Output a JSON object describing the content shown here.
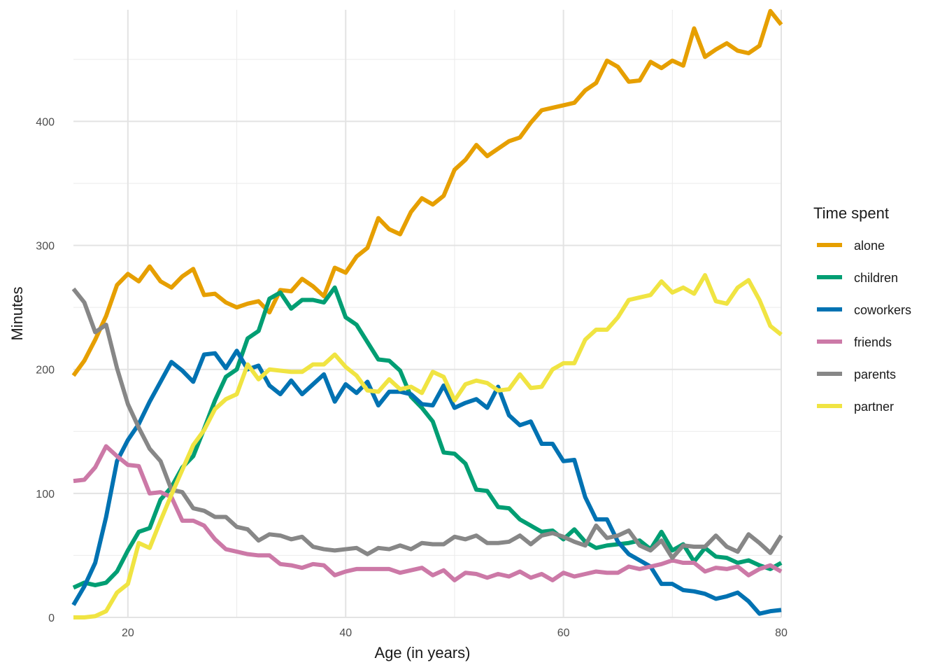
{
  "chart_data": {
    "type": "line",
    "title": "",
    "xlabel": "Age (in years)",
    "ylabel": "Minutes",
    "xlim": [
      15,
      80
    ],
    "ylim": [
      0,
      490
    ],
    "x_ticks": [
      20,
      40,
      60,
      80
    ],
    "y_ticks": [
      0,
      100,
      200,
      300,
      400
    ],
    "grid": true,
    "legend": {
      "title": "Time spent",
      "placement": "right"
    },
    "x": [
      15,
      16,
      17,
      18,
      19,
      20,
      21,
      22,
      23,
      24,
      25,
      26,
      27,
      28,
      29,
      30,
      31,
      32,
      33,
      34,
      35,
      36,
      37,
      38,
      39,
      40,
      41,
      42,
      43,
      44,
      45,
      46,
      47,
      48,
      49,
      50,
      51,
      52,
      53,
      54,
      55,
      56,
      57,
      58,
      59,
      60,
      61,
      62,
      63,
      64,
      65,
      66,
      67,
      68,
      69,
      70,
      71,
      72,
      73,
      74,
      75,
      76,
      77,
      78,
      79,
      80
    ],
    "series": [
      {
        "name": "alone",
        "color": "#E69F00",
        "values": [
          195,
          207,
          224,
          243,
          268,
          277,
          271,
          283,
          271,
          266,
          275,
          281,
          260,
          261,
          254,
          250,
          253,
          255,
          246,
          264,
          263,
          273,
          267,
          259,
          282,
          278,
          291,
          298,
          322,
          313,
          309,
          327,
          338,
          333,
          340,
          361,
          369,
          381,
          372,
          378,
          384,
          387,
          399,
          409,
          411,
          413,
          415,
          425,
          431,
          449,
          444,
          432,
          433,
          448,
          443,
          449,
          445,
          475,
          452,
          458,
          463,
          457,
          455,
          461,
          489,
          478
        ]
      },
      {
        "name": "children",
        "color": "#009E73",
        "values": [
          24,
          28,
          26,
          28,
          37,
          54,
          69,
          72,
          95,
          105,
          121,
          130,
          152,
          175,
          194,
          200,
          225,
          231,
          257,
          262,
          249,
          256,
          256,
          254,
          266,
          242,
          236,
          222,
          208,
          207,
          199,
          178,
          169,
          158,
          133,
          132,
          124,
          103,
          102,
          89,
          88,
          79,
          74,
          69,
          70,
          63,
          71,
          61,
          56,
          58,
          59,
          60,
          62,
          55,
          69,
          54,
          59,
          45,
          56,
          49,
          48,
          44,
          46,
          42,
          39,
          44
        ]
      },
      {
        "name": "coworkers",
        "color": "#0072B2",
        "values": [
          10,
          25,
          44,
          81,
          126,
          143,
          156,
          174,
          190,
          206,
          199,
          190,
          212,
          213,
          201,
          215,
          200,
          203,
          187,
          180,
          191,
          180,
          188,
          196,
          174,
          188,
          181,
          190,
          171,
          182,
          182,
          180,
          172,
          171,
          187,
          169,
          173,
          176,
          169,
          186,
          163,
          155,
          158,
          140,
          140,
          126,
          127,
          97,
          79,
          79,
          61,
          51,
          46,
          41,
          27,
          27,
          22,
          21,
          19,
          15,
          17,
          20,
          13,
          3,
          5,
          6
        ]
      },
      {
        "name": "friends",
        "color": "#CC79A7",
        "values": [
          110,
          111,
          121,
          138,
          130,
          123,
          122,
          100,
          101,
          97,
          78,
          78,
          74,
          63,
          55,
          53,
          51,
          50,
          50,
          43,
          42,
          40,
          43,
          42,
          34,
          37,
          39,
          39,
          39,
          39,
          36,
          38,
          40,
          34,
          38,
          30,
          36,
          35,
          32,
          35,
          33,
          37,
          32,
          35,
          30,
          36,
          33,
          35,
          37,
          36,
          36,
          41,
          39,
          41,
          43,
          46,
          44,
          44,
          37,
          40,
          39,
          41,
          34,
          39,
          42,
          37
        ]
      },
      {
        "name": "parents",
        "color": "#878787",
        "values": [
          265,
          254,
          230,
          236,
          201,
          172,
          153,
          136,
          126,
          103,
          101,
          88,
          86,
          81,
          81,
          73,
          71,
          62,
          67,
          66,
          63,
          65,
          57,
          55,
          54,
          55,
          56,
          51,
          56,
          55,
          58,
          55,
          60,
          59,
          59,
          65,
          63,
          66,
          60,
          60,
          61,
          66,
          59,
          66,
          68,
          65,
          61,
          58,
          74,
          64,
          66,
          70,
          58,
          54,
          62,
          48,
          58,
          57,
          57,
          66,
          57,
          53,
          67,
          60,
          52,
          66
        ]
      },
      {
        "name": "partner",
        "color": "#F0E442",
        "values": [
          0,
          0,
          1,
          5,
          20,
          27,
          60,
          56,
          78,
          99,
          119,
          139,
          151,
          168,
          176,
          180,
          204,
          192,
          200,
          199,
          198,
          198,
          204,
          204,
          212,
          202,
          195,
          183,
          182,
          192,
          184,
          186,
          181,
          198,
          194,
          175,
          188,
          191,
          189,
          183,
          184,
          196,
          185,
          186,
          200,
          205,
          205,
          224,
          232,
          232,
          242,
          256,
          258,
          260,
          271,
          262,
          266,
          261,
          276,
          255,
          253,
          266,
          272,
          256,
          235,
          228
        ]
      }
    ]
  }
}
